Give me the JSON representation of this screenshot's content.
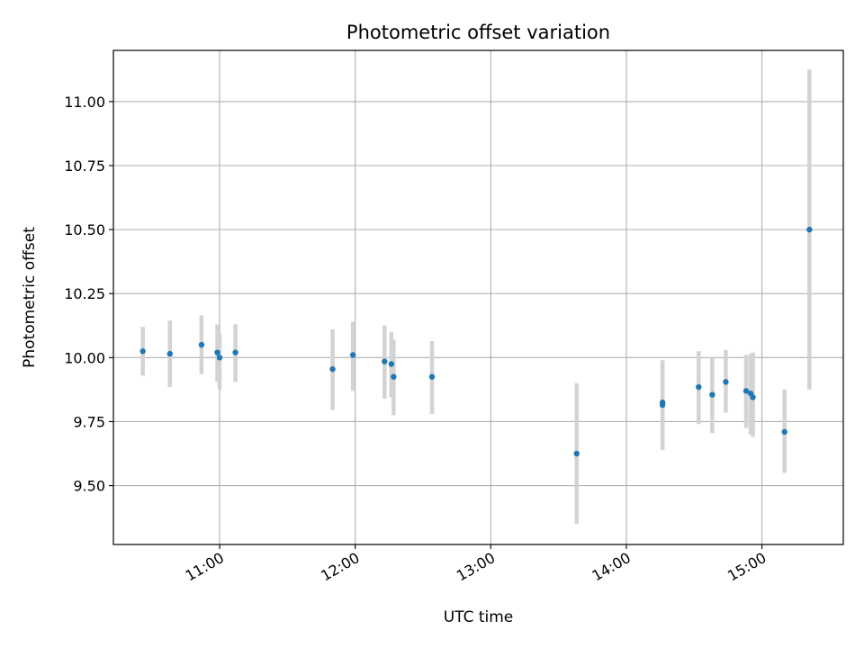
{
  "chart_data": {
    "type": "scatter",
    "title": "Photometric offset variation",
    "xlabel": "UTC time",
    "ylabel": "Photometric offset",
    "xlim": [
      "10:13",
      "15:36"
    ],
    "ylim": [
      9.27,
      11.2
    ],
    "x_ticks": [
      "11:00",
      "12:00",
      "13:00",
      "14:00",
      "15:00"
    ],
    "y_ticks": [
      "9.50",
      "9.75",
      "10.00",
      "10.25",
      "10.50",
      "10.75",
      "11.00"
    ],
    "grid": true,
    "marker_color": "#1f77b4",
    "errorbar_color": "#d3d3d3",
    "points": [
      {
        "x": "10:26",
        "y": 10.025,
        "err_low": 9.93,
        "err_high": 10.12
      },
      {
        "x": "10:38",
        "y": 10.015,
        "err_low": 9.885,
        "err_high": 10.145
      },
      {
        "x": "10:52",
        "y": 10.05,
        "err_low": 9.935,
        "err_high": 10.165
      },
      {
        "x": "10:59",
        "y": 10.02,
        "err_low": 9.905,
        "err_high": 10.13
      },
      {
        "x": "11:00",
        "y": 10.0,
        "err_low": 9.875,
        "err_high": 10.095
      },
      {
        "x": "11:07",
        "y": 10.02,
        "err_low": 9.905,
        "err_high": 10.13
      },
      {
        "x": "11:50",
        "y": 9.955,
        "err_low": 9.795,
        "err_high": 10.11
      },
      {
        "x": "11:59",
        "y": 10.01,
        "err_low": 9.87,
        "err_high": 10.14
      },
      {
        "x": "12:13",
        "y": 9.985,
        "err_low": 9.84,
        "err_high": 10.125
      },
      {
        "x": "12:16",
        "y": 9.975,
        "err_low": 9.845,
        "err_high": 10.1
      },
      {
        "x": "12:17",
        "y": 9.925,
        "err_low": 9.775,
        "err_high": 10.07
      },
      {
        "x": "12:34",
        "y": 9.925,
        "err_low": 9.78,
        "err_high": 10.065
      },
      {
        "x": "13:38",
        "y": 9.625,
        "err_low": 9.35,
        "err_high": 9.9
      },
      {
        "x": "14:16",
        "y": 9.815,
        "err_low": 9.64,
        "err_high": 9.985
      },
      {
        "x": "14:16",
        "y": 9.825,
        "err_low": 9.66,
        "err_high": 9.99
      },
      {
        "x": "14:32",
        "y": 9.885,
        "err_low": 9.74,
        "err_high": 10.025
      },
      {
        "x": "14:38",
        "y": 9.855,
        "err_low": 9.705,
        "err_high": 10.0
      },
      {
        "x": "14:44",
        "y": 9.905,
        "err_low": 9.785,
        "err_high": 10.03
      },
      {
        "x": "14:53",
        "y": 9.87,
        "err_low": 9.725,
        "err_high": 10.01
      },
      {
        "x": "14:55",
        "y": 9.86,
        "err_low": 9.7,
        "err_high": 10.015
      },
      {
        "x": "14:56",
        "y": 9.845,
        "err_low": 9.69,
        "err_high": 10.02
      },
      {
        "x": "15:10",
        "y": 9.71,
        "err_low": 9.55,
        "err_high": 9.875
      },
      {
        "x": "15:21",
        "y": 10.5,
        "err_low": 9.875,
        "err_high": 11.125
      }
    ]
  }
}
